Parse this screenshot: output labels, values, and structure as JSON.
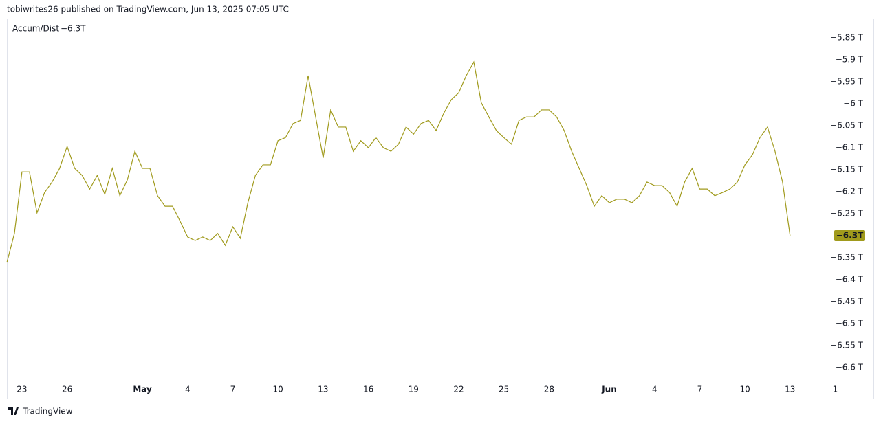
{
  "header": {
    "title": "tobiwrites26 published on TradingView.com, Jun 13, 2025 07:05 UTC"
  },
  "footer": {
    "brand": "TradingView"
  },
  "chart_data": {
    "type": "line",
    "series": [
      {
        "name": "Accum/Dist",
        "color": "#a09a1c",
        "values": [
          -6.361,
          -6.295,
          -6.155,
          -6.155,
          -6.248,
          -6.202,
          -6.178,
          -6.147,
          -6.097,
          -6.147,
          -6.163,
          -6.194,
          -6.163,
          -6.206,
          -6.147,
          -6.209,
          -6.173,
          -6.108,
          -6.147,
          -6.147,
          -6.209,
          -6.233,
          -6.233,
          -6.267,
          -6.303,
          -6.311,
          -6.303,
          -6.311,
          -6.295,
          -6.322,
          -6.28,
          -6.306,
          -6.225,
          -6.163,
          -6.139,
          -6.139,
          -6.084,
          -6.077,
          -6.045,
          -6.038,
          -5.936,
          -6.03,
          -6.123,
          -6.014,
          -6.053,
          -6.053,
          -6.108,
          -6.084,
          -6.1,
          -6.077,
          -6.1,
          -6.108,
          -6.092,
          -6.053,
          -6.069,
          -6.045,
          -6.038,
          -6.061,
          -6.022,
          -5.991,
          -5.975,
          -5.936,
          -5.905,
          -5.998,
          -6.03,
          -6.061,
          -6.077,
          -6.092,
          -6.038,
          -6.03,
          -6.03,
          -6.014,
          -6.014,
          -6.03,
          -6.061,
          -6.108,
          -6.147,
          -6.186,
          -6.233,
          -6.209,
          -6.225,
          -6.217,
          -6.217,
          -6.225,
          -6.209,
          -6.178,
          -6.186,
          -6.186,
          -6.202,
          -6.233,
          -6.178,
          -6.147,
          -6.194,
          -6.194,
          -6.209,
          -6.202,
          -6.194,
          -6.178,
          -6.139,
          -6.116,
          -6.077,
          -6.053,
          -6.108,
          -6.178,
          -6.3,
          null,
          null,
          null,
          null,
          null,
          null,
          null,
          null,
          null,
          null,
          null
        ]
      }
    ],
    "last_value_label": "−6.3T",
    "categories": [
      null,
      null,
      "23",
      null,
      null,
      null,
      null,
      null,
      "26",
      null,
      null,
      null,
      null,
      null,
      null,
      null,
      null,
      null,
      "May",
      null,
      null,
      null,
      null,
      null,
      "4",
      null,
      null,
      null,
      null,
      null,
      "7",
      null,
      null,
      null,
      null,
      null,
      "10",
      null,
      null,
      null,
      null,
      null,
      "13",
      null,
      null,
      null,
      null,
      null,
      "16",
      null,
      null,
      null,
      null,
      null,
      "19",
      null,
      null,
      null,
      null,
      null,
      "22",
      null,
      null,
      null,
      null,
      null,
      "25",
      null,
      null,
      null,
      null,
      null,
      "28",
      null,
      null,
      null,
      null,
      null,
      null,
      null,
      "Jun",
      null,
      null,
      null,
      null,
      null,
      "4",
      null,
      null,
      null,
      null,
      null,
      "7",
      null,
      null,
      null,
      null,
      null,
      "10",
      null,
      null,
      null,
      null,
      null,
      "13",
      null,
      null,
      null,
      null,
      null,
      "1",
      null,
      null,
      null,
      null,
      null
    ],
    "ylim": [
      -6.63,
      -5.81
    ],
    "yticks": [
      {
        "value": -5.85,
        "label": "−5.85 T"
      },
      {
        "value": -5.9,
        "label": "−5.9 T"
      },
      {
        "value": -5.95,
        "label": "−5.95 T"
      },
      {
        "value": -6,
        "label": "−6 T"
      },
      {
        "value": -6.05,
        "label": "−6.05 T"
      },
      {
        "value": -6.1,
        "label": "−6.1 T"
      },
      {
        "value": -6.15,
        "label": "−6.15 T"
      },
      {
        "value": -6.2,
        "label": "−6.2 T"
      },
      {
        "value": -6.25,
        "label": "−6.25 T"
      },
      {
        "value": -6.35,
        "label": "−6.35 T"
      },
      {
        "value": -6.4,
        "label": "−6.4 T"
      },
      {
        "value": -6.45,
        "label": "−6.45 T"
      },
      {
        "value": -6.5,
        "label": "−6.5 T"
      },
      {
        "value": -6.55,
        "label": "−6.55 T"
      },
      {
        "value": -6.6,
        "label": "−6.6 T"
      }
    ],
    "grid": false
  }
}
